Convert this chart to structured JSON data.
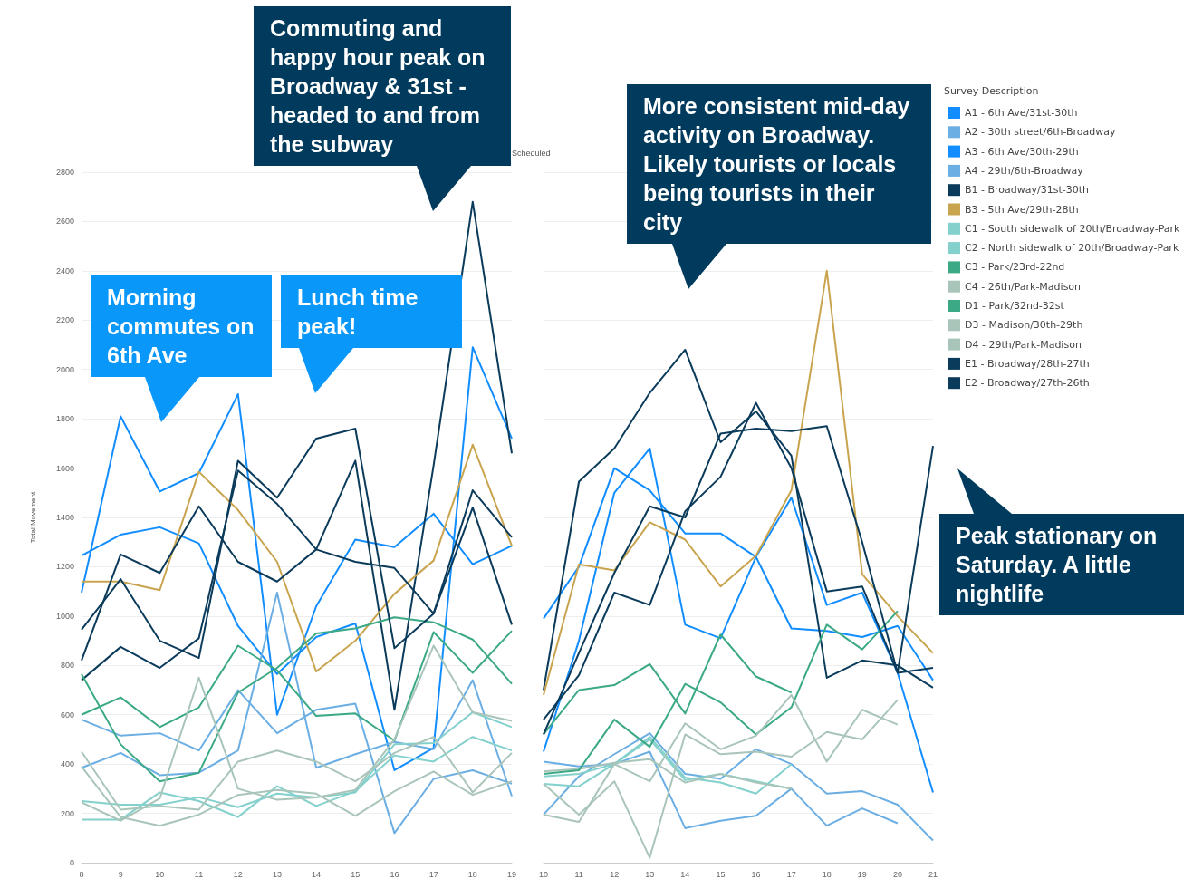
{
  "chart_data": [
    {
      "type": "line",
      "ylabel": "Total Movement",
      "categories": [
        "8",
        "9",
        "10",
        "11",
        "12",
        "13",
        "14",
        "15",
        "16",
        "17",
        "18",
        "19"
      ],
      "ylim": [
        0,
        2800
      ],
      "yticks": [
        0,
        200,
        400,
        600,
        800,
        1000,
        1200,
        1400,
        1600,
        1800,
        2000,
        2200,
        2400,
        2600,
        2800
      ],
      "grid": "y",
      "legend": false,
      "annotations": [
        "Morning commutes on 6th Ave",
        "Lunch time peak!",
        "Commuting and happy hour peak on Broadway & 31st - headed to and from the subway"
      ],
      "series": [
        {
          "color": "#118dff",
          "values": [
            1095,
            1810,
            1505,
            1580,
            1900,
            600,
            1040,
            1310,
            1280,
            1415,
            1210,
            1285
          ]
        },
        {
          "color": "#6baee3",
          "values": [
            580,
            515,
            525,
            455,
            700,
            525,
            620,
            645,
            120,
            340,
            375,
            320
          ]
        },
        {
          "color": "#118dff",
          "values": [
            1245,
            1330,
            1360,
            1295,
            960,
            765,
            915,
            970,
            375,
            465,
            2090,
            1720
          ]
        },
        {
          "color": "#6baee3",
          "values": [
            385,
            445,
            355,
            365,
            455,
            1095,
            385,
            440,
            490,
            460,
            740,
            270
          ]
        },
        {
          "color": "#0b3b5b",
          "values": [
            740,
            875,
            790,
            910,
            1590,
            1455,
            1270,
            1630,
            620,
            1610,
            2680,
            1660
          ]
        },
        {
          "color": "#c9a44f",
          "values": [
            1140,
            1140,
            1105,
            1585,
            1430,
            1220,
            775,
            900,
            1090,
            1225,
            1695,
            1285
          ]
        },
        {
          "color": "#83d0cc",
          "values": [
            175,
            175,
            285,
            250,
            185,
            310,
            230,
            290,
            435,
            410,
            510,
            455
          ]
        },
        {
          "color": "#83d0cc",
          "values": [
            250,
            235,
            235,
            265,
            225,
            280,
            265,
            285,
            480,
            485,
            610,
            550
          ]
        },
        {
          "color": "#3ba985",
          "values": [
            765,
            480,
            330,
            365,
            690,
            790,
            930,
            950,
            995,
            975,
            905,
            725
          ]
        },
        {
          "color": "#a9c5b9",
          "values": [
            450,
            215,
            230,
            215,
            410,
            455,
            410,
            330,
            445,
            510,
            285,
            445
          ]
        },
        {
          "color": "#3ba985",
          "values": [
            600,
            670,
            550,
            630,
            880,
            780,
            595,
            605,
            495,
            935,
            770,
            940
          ]
        },
        {
          "color": "#a9c5b9",
          "values": [
            245,
            170,
            260,
            750,
            300,
            255,
            265,
            295,
            500,
            880,
            610,
            575
          ]
        },
        {
          "color": "#a9c5b9",
          "values": [
            390,
            185,
            150,
            195,
            275,
            295,
            280,
            190,
            290,
            370,
            275,
            330
          ]
        },
        {
          "color": "#0b3b5b",
          "values": [
            945,
            1150,
            900,
            830,
            1630,
            1480,
            1720,
            1760,
            870,
            1010,
            1440,
            965
          ]
        },
        {
          "color": "#0b3b5b",
          "values": [
            820,
            1250,
            1175,
            1445,
            1220,
            1140,
            1270,
            1220,
            1195,
            1010,
            1510,
            1320
          ]
        }
      ]
    },
    {
      "type": "line",
      "categories": [
        "10",
        "11",
        "12",
        "13",
        "14",
        "15",
        "16",
        "17",
        "18",
        "19",
        "20",
        "21"
      ],
      "ylim": [
        0,
        2800
      ],
      "yticks": [
        0,
        200,
        400,
        600,
        800,
        1000,
        1200,
        1400,
        1600,
        1800,
        2000,
        2200,
        2400,
        2600,
        2800
      ],
      "grid": "y",
      "tick_labels": "x",
      "legend": "right",
      "legend_title": "Survey Description",
      "annotations": [
        "More consistent mid-day activity on Broadway. Likely tourists or locals being tourists in their city",
        "Peak stationary on Saturday. A little nightlife",
        "Scheduled"
      ],
      "series": [
        {
          "name": "A1 - 6th Ave/31st-30th",
          "color": "#118dff",
          "values": [
            990,
            1200,
            1600,
            1510,
            1335,
            1335,
            1240,
            950,
            940,
            915,
            960,
            740
          ]
        },
        {
          "name": "A2 - 30th street/6th-Broadway",
          "color": "#6baee3",
          "values": [
            410,
            390,
            400,
            450,
            140,
            170,
            190,
            300,
            150,
            220,
            160,
            null
          ]
        },
        {
          "name": "A3 - 6th Ave/30th-29th",
          "color": "#118dff",
          "values": [
            450,
            900,
            1500,
            1680,
            965,
            910,
            1240,
            1480,
            1045,
            1095,
            770,
            285
          ]
        },
        {
          "name": "A4 - 29th/6th-Broadway",
          "color": "#6baee3",
          "values": [
            195,
            350,
            440,
            525,
            360,
            340,
            460,
            400,
            280,
            290,
            235,
            90
          ]
        },
        {
          "name": "B1 - Broadway/31st-30th",
          "color": "#0b3b5b",
          "values": [
            700,
            1545,
            1680,
            1905,
            2080,
            1705,
            1830,
            1650,
            750,
            820,
            800,
            710
          ]
        },
        {
          "name": "B3 - 5th Ave/29th-28th",
          "color": "#c9a44f",
          "values": [
            680,
            1210,
            1185,
            1380,
            1310,
            1120,
            1245,
            1510,
            2400,
            1170,
            1000,
            850
          ]
        },
        {
          "name": "C1 - South sidewalk of 20th/Broadway-Park",
          "color": "#83d0cc",
          "values": [
            320,
            310,
            400,
            510,
            345,
            325,
            280,
            400,
            null,
            null,
            null,
            null
          ]
        },
        {
          "name": "C2 - North sidewalk of 20th/Broadway-Park",
          "color": "#83d0cc",
          "values": [
            350,
            360,
            400,
            500,
            335,
            360,
            330,
            300,
            null,
            null,
            null,
            null
          ]
        },
        {
          "name": "C3 - Park/23rd-22nd",
          "color": "#3ba985",
          "values": [
            520,
            700,
            720,
            805,
            605,
            925,
            755,
            690,
            null,
            null,
            null,
            null
          ]
        },
        {
          "name": "C4 - 26th/Park-Madison",
          "color": "#a9c5b9",
          "values": [
            370,
            380,
            405,
            420,
            325,
            360,
            325,
            300,
            null,
            null,
            null,
            null
          ]
        },
        {
          "name": "D1 - Park/32nd-32st",
          "color": "#3ba985",
          "values": [
            360,
            375,
            580,
            470,
            725,
            650,
            520,
            630,
            965,
            865,
            1020,
            null
          ]
        },
        {
          "name": "D3 - Madison/30th-29th",
          "color": "#a9c5b9",
          "values": [
            320,
            195,
            330,
            20,
            520,
            440,
            450,
            430,
            530,
            500,
            660,
            null
          ]
        },
        {
          "name": "D4 - 29th/Park-Madison",
          "color": "#a9c5b9",
          "values": [
            195,
            165,
            400,
            330,
            565,
            460,
            515,
            680,
            410,
            620,
            560,
            null
          ]
        },
        {
          "name": "E1 - Broadway/28th-27th",
          "color": "#0b3b5b",
          "values": [
            520,
            850,
            1175,
            1445,
            1400,
            1740,
            1760,
            1750,
            1770,
            1300,
            770,
            1690
          ]
        },
        {
          "name": "E2 - Broadway/27th-26th",
          "color": "#0b3b5b",
          "values": [
            580,
            760,
            1095,
            1045,
            1425,
            1565,
            1865,
            1600,
            1100,
            1120,
            770,
            790
          ]
        }
      ]
    }
  ]
}
